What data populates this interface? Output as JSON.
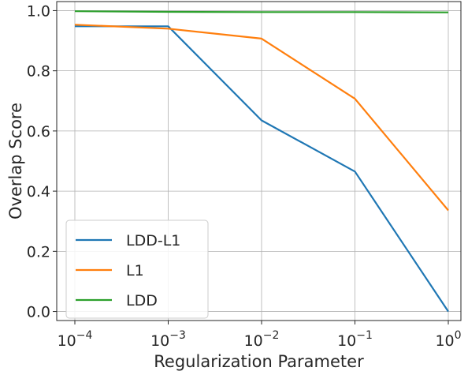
{
  "chart_data": {
    "type": "line",
    "title": "",
    "xlabel": "Regularization Parameter",
    "ylabel": "Overlap Score",
    "x": [
      0.0001,
      0.001,
      0.01,
      0.1,
      1
    ],
    "x_scale": "log",
    "x_tick_labels": [
      {
        "base": "10",
        "exp": "−4"
      },
      {
        "base": "10",
        "exp": "−3"
      },
      {
        "base": "10",
        "exp": "−2"
      },
      {
        "base": "10",
        "exp": "−1"
      },
      {
        "base": "10",
        "exp": "0"
      }
    ],
    "ylim": [
      -0.03,
      1.03
    ],
    "y_ticks": [
      0.0,
      0.2,
      0.4,
      0.6,
      0.8,
      1.0
    ],
    "y_tick_labels": [
      "0.0",
      "0.2",
      "0.4",
      "0.6",
      "0.8",
      "1.0"
    ],
    "grid": true,
    "legend_position": "lower-left",
    "series": [
      {
        "name": "LDD-L1",
        "color": "#1f77b4",
        "values": [
          0.948,
          0.948,
          0.635,
          0.465,
          0.0
        ]
      },
      {
        "name": "L1",
        "color": "#ff7f0e",
        "values": [
          0.953,
          0.94,
          0.907,
          0.707,
          0.336
        ]
      },
      {
        "name": "LDD",
        "color": "#2ca02c",
        "values": [
          0.998,
          0.996,
          0.995,
          0.995,
          0.994
        ]
      }
    ]
  }
}
